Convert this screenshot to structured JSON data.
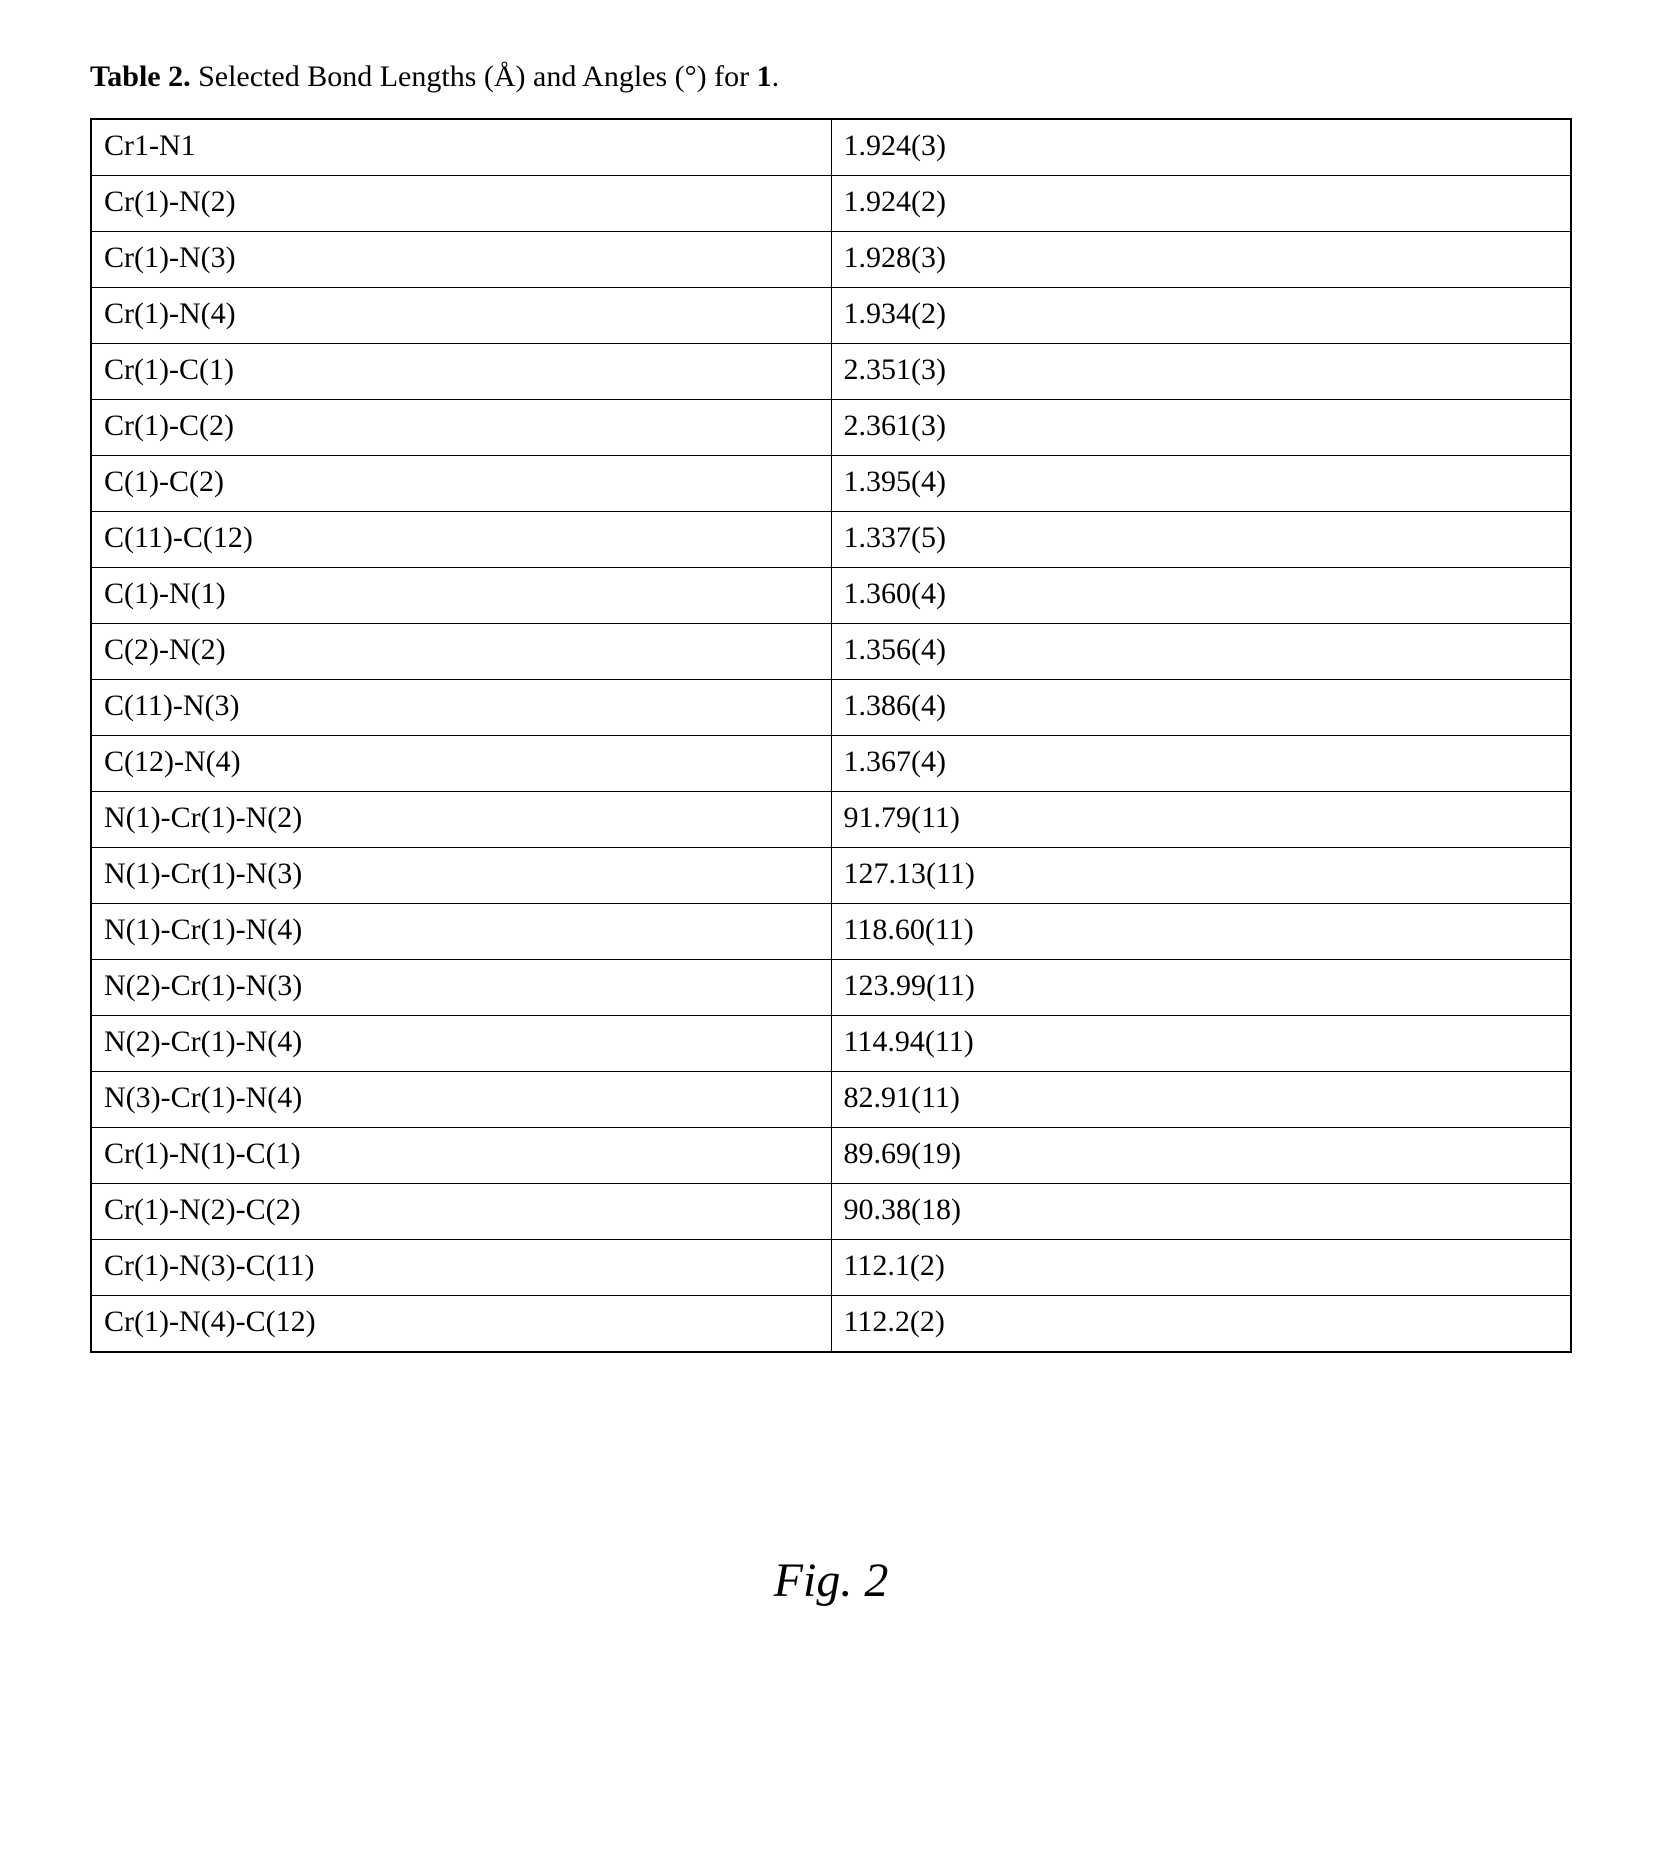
{
  "caption": {
    "label_bold": "Table 2.",
    "text": " Selected Bond Lengths (Å) and Angles (°) for ",
    "trailing_bold": "1",
    "period": "."
  },
  "table": {
    "rows": [
      {
        "param": "Cr1-N1",
        "value": "1.924(3)"
      },
      {
        "param": "Cr(1)-N(2)",
        "value": "1.924(2)"
      },
      {
        "param": "Cr(1)-N(3)",
        "value": "1.928(3)"
      },
      {
        "param": "Cr(1)-N(4)",
        "value": "1.934(2)"
      },
      {
        "param": "Cr(1)-C(1)",
        "value": "2.351(3)"
      },
      {
        "param": "Cr(1)-C(2)",
        "value": "2.361(3)"
      },
      {
        "param": "C(1)-C(2)",
        "value": "1.395(4)"
      },
      {
        "param": "C(11)-C(12)",
        "value": "1.337(5)"
      },
      {
        "param": "C(1)-N(1)",
        "value": "1.360(4)"
      },
      {
        "param": "C(2)-N(2)",
        "value": "1.356(4)"
      },
      {
        "param": "C(11)-N(3)",
        "value": "1.386(4)"
      },
      {
        "param": "C(12)-N(4)",
        "value": "1.367(4)"
      },
      {
        "param": "N(1)-Cr(1)-N(2)",
        "value": "91.79(11)"
      },
      {
        "param": "N(1)-Cr(1)-N(3)",
        "value": "127.13(11)"
      },
      {
        "param": "N(1)-Cr(1)-N(4)",
        "value": "118.60(11)"
      },
      {
        "param": "N(2)-Cr(1)-N(3)",
        "value": "123.99(11)"
      },
      {
        "param": "N(2)-Cr(1)-N(4)",
        "value": "114.94(11)"
      },
      {
        "param": "N(3)-Cr(1)-N(4)",
        "value": "82.91(11)"
      },
      {
        "param": "Cr(1)-N(1)-C(1)",
        "value": "89.69(19)"
      },
      {
        "param": "Cr(1)-N(2)-C(2)",
        "value": "90.38(18)"
      },
      {
        "param": "Cr(1)-N(3)-C(11)",
        "value": "112.1(2)"
      },
      {
        "param": "Cr(1)-N(4)-C(12)",
        "value": "112.2(2)"
      }
    ]
  },
  "figure_label": "Fig. 2"
}
